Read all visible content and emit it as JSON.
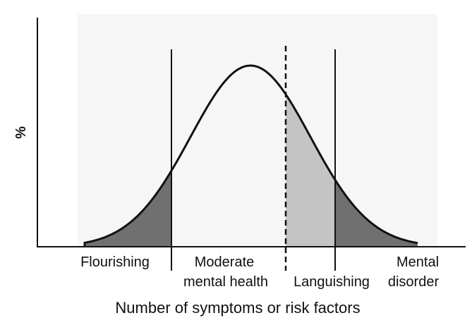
{
  "y_axis_label": "%",
  "x_axis_label": "Number of symptoms or risk factors",
  "regions": [
    {
      "lines": [
        "Flourishing"
      ]
    },
    {
      "lines": [
        "Moderate",
        "mental health"
      ]
    },
    {
      "lines": [
        "Languishing"
      ]
    },
    {
      "lines": [
        "Mental",
        "disorder"
      ]
    }
  ]
}
